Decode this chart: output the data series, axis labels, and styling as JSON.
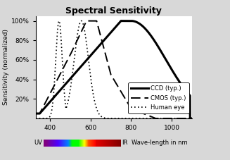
{
  "title": "Spectral Sensitivity",
  "ylabel": "Sensitivity (normalized)",
  "xlabel_bottom": "Wave-length in nm",
  "xlim": [
    330,
    1100
  ],
  "ylim": [
    0,
    105
  ],
  "yticks": [
    20,
    40,
    60,
    80,
    100
  ],
  "ytick_labels": [
    "20%",
    "40%",
    "60%",
    "80%",
    "100%"
  ],
  "xticks": [
    400,
    600,
    800,
    1000
  ],
  "legend_labels": [
    "CCD (typ.)",
    "CMOS (typ.)",
    "Human eye"
  ],
  "background_color": "#d8d8d8",
  "plot_bg": "#ffffff",
  "spectrum_start": 370,
  "spectrum_end": 750
}
